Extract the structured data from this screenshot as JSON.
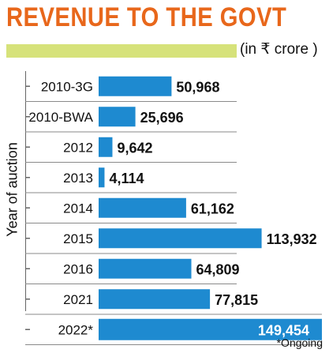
{
  "title": "REVENUE TO THE GOVT",
  "unit_label": "(in ₹ crore )",
  "footnote": "*Ongoing",
  "colors": {
    "title": "#e8671b",
    "bar": "#1e8ad0",
    "unit_band": "#d6e27a",
    "highlight_band": "#1e8ad0"
  },
  "chart_data": {
    "type": "bar",
    "orientation": "horizontal",
    "title": "REVENUE TO THE GOVT",
    "ylabel": "Year of auction",
    "unit": "(in ₹ crore )",
    "categories": [
      "2010-3G",
      "2010-BWA",
      "2012",
      "2013",
      "2014",
      "2015",
      "2016",
      "2021",
      "2022*"
    ],
    "values": [
      50968,
      25696,
      9642,
      4114,
      61162,
      113932,
      64809,
      77815,
      149454
    ],
    "value_labels": [
      "50,968",
      "25,696",
      "9,642",
      "4,114",
      "61,162",
      "113,932",
      "64,809",
      "77,815",
      "149,454"
    ],
    "highlight_index": 8
  }
}
